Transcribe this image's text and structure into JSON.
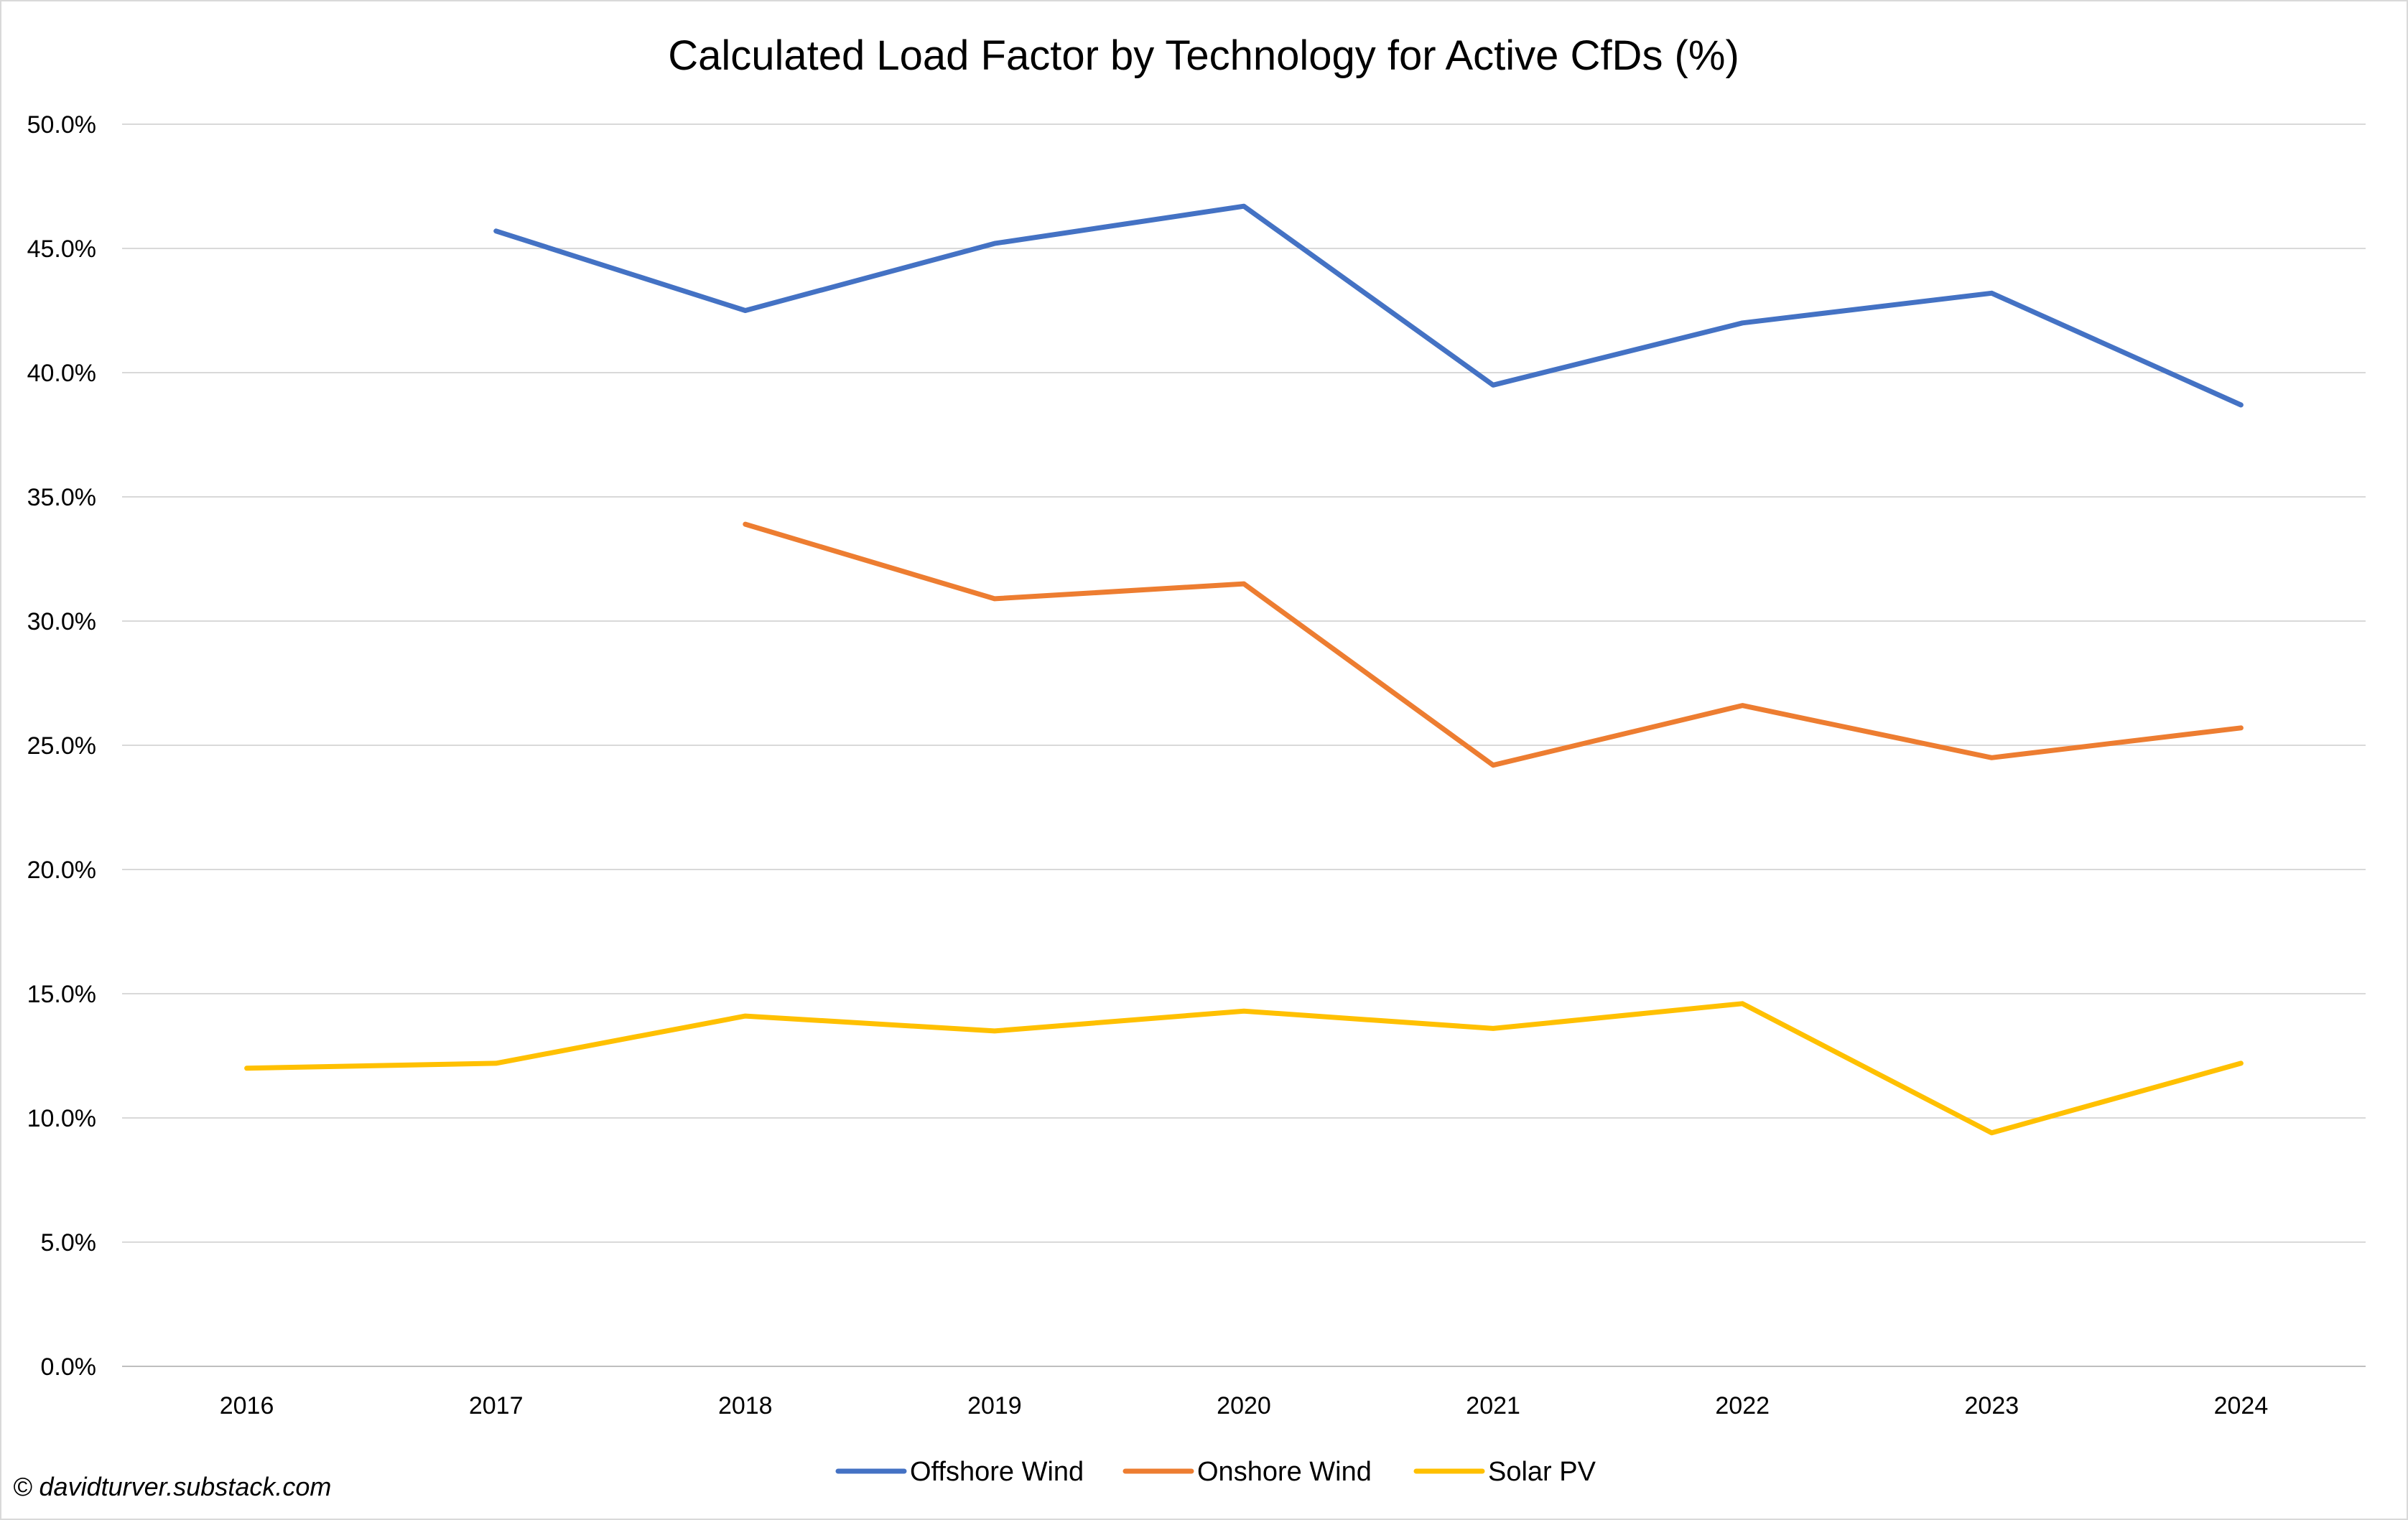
{
  "chart_data": {
    "type": "line",
    "title": "Calculated Load Factor by Technology for Active CfDs (%)",
    "xlabel": "",
    "ylabel": "",
    "categories": [
      "2016",
      "2017",
      "2018",
      "2019",
      "2020",
      "2021",
      "2022",
      "2023",
      "2024"
    ],
    "ylim": [
      0,
      50
    ],
    "yticks": [
      "0.0%",
      "5.0%",
      "10.0%",
      "15.0%",
      "20.0%",
      "25.0%",
      "30.0%",
      "35.0%",
      "40.0%",
      "45.0%",
      "50.0%"
    ],
    "grid": true,
    "legend_position": "bottom",
    "series": [
      {
        "name": "Offshore Wind",
        "color": "#4472C4",
        "values": [
          null,
          45.7,
          42.5,
          45.2,
          46.7,
          39.5,
          42.0,
          43.2,
          38.7
        ]
      },
      {
        "name": "Onshore Wind",
        "color": "#ED7D31",
        "values": [
          null,
          null,
          33.9,
          30.9,
          31.5,
          24.2,
          26.6,
          24.5,
          25.7
        ]
      },
      {
        "name": "Solar PV",
        "color": "#FFC000",
        "values": [
          12.0,
          12.2,
          14.1,
          13.5,
          14.3,
          13.6,
          14.6,
          9.4,
          12.2
        ]
      }
    ]
  },
  "credit": "© davidturver.substack.com"
}
